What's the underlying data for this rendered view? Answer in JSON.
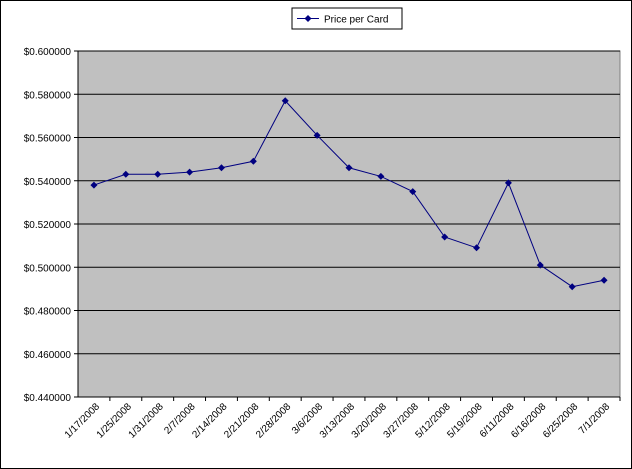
{
  "chart_data": {
    "type": "line",
    "categories": [
      "1/17/2008",
      "1/25/2008",
      "1/31/2008",
      "2/7/2008",
      "2/14/2008",
      "2/21/2008",
      "2/28/2008",
      "3/6/2008",
      "3/13/2008",
      "3/20/2008",
      "3/27/2008",
      "5/12/2008",
      "5/19/2008",
      "6/11/2008",
      "6/16/2008",
      "6/25/2008",
      "7/1/2008"
    ],
    "series": [
      {
        "name": "Price per Card",
        "color": "#000080",
        "values": [
          0.538,
          0.543,
          0.543,
          0.544,
          0.546,
          0.549,
          0.577,
          0.561,
          0.546,
          0.542,
          0.535,
          0.514,
          0.509,
          0.539,
          0.501,
          0.491,
          0.494
        ]
      }
    ],
    "ylim": [
      0.44,
      0.6
    ],
    "yticks": [
      {
        "value": 0.44,
        "label": "$0.440000"
      },
      {
        "value": 0.46,
        "label": "$0.460000"
      },
      {
        "value": 0.48,
        "label": "$0.480000"
      },
      {
        "value": 0.5,
        "label": "$0.500000"
      },
      {
        "value": 0.52,
        "label": "$0.520000"
      },
      {
        "value": 0.54,
        "label": "$0.540000"
      },
      {
        "value": 0.56,
        "label": "$0.560000"
      },
      {
        "value": 0.58,
        "label": "$0.580000"
      },
      {
        "value": 0.6,
        "label": "$0.600000"
      }
    ],
    "grid": true,
    "legend": "top"
  }
}
